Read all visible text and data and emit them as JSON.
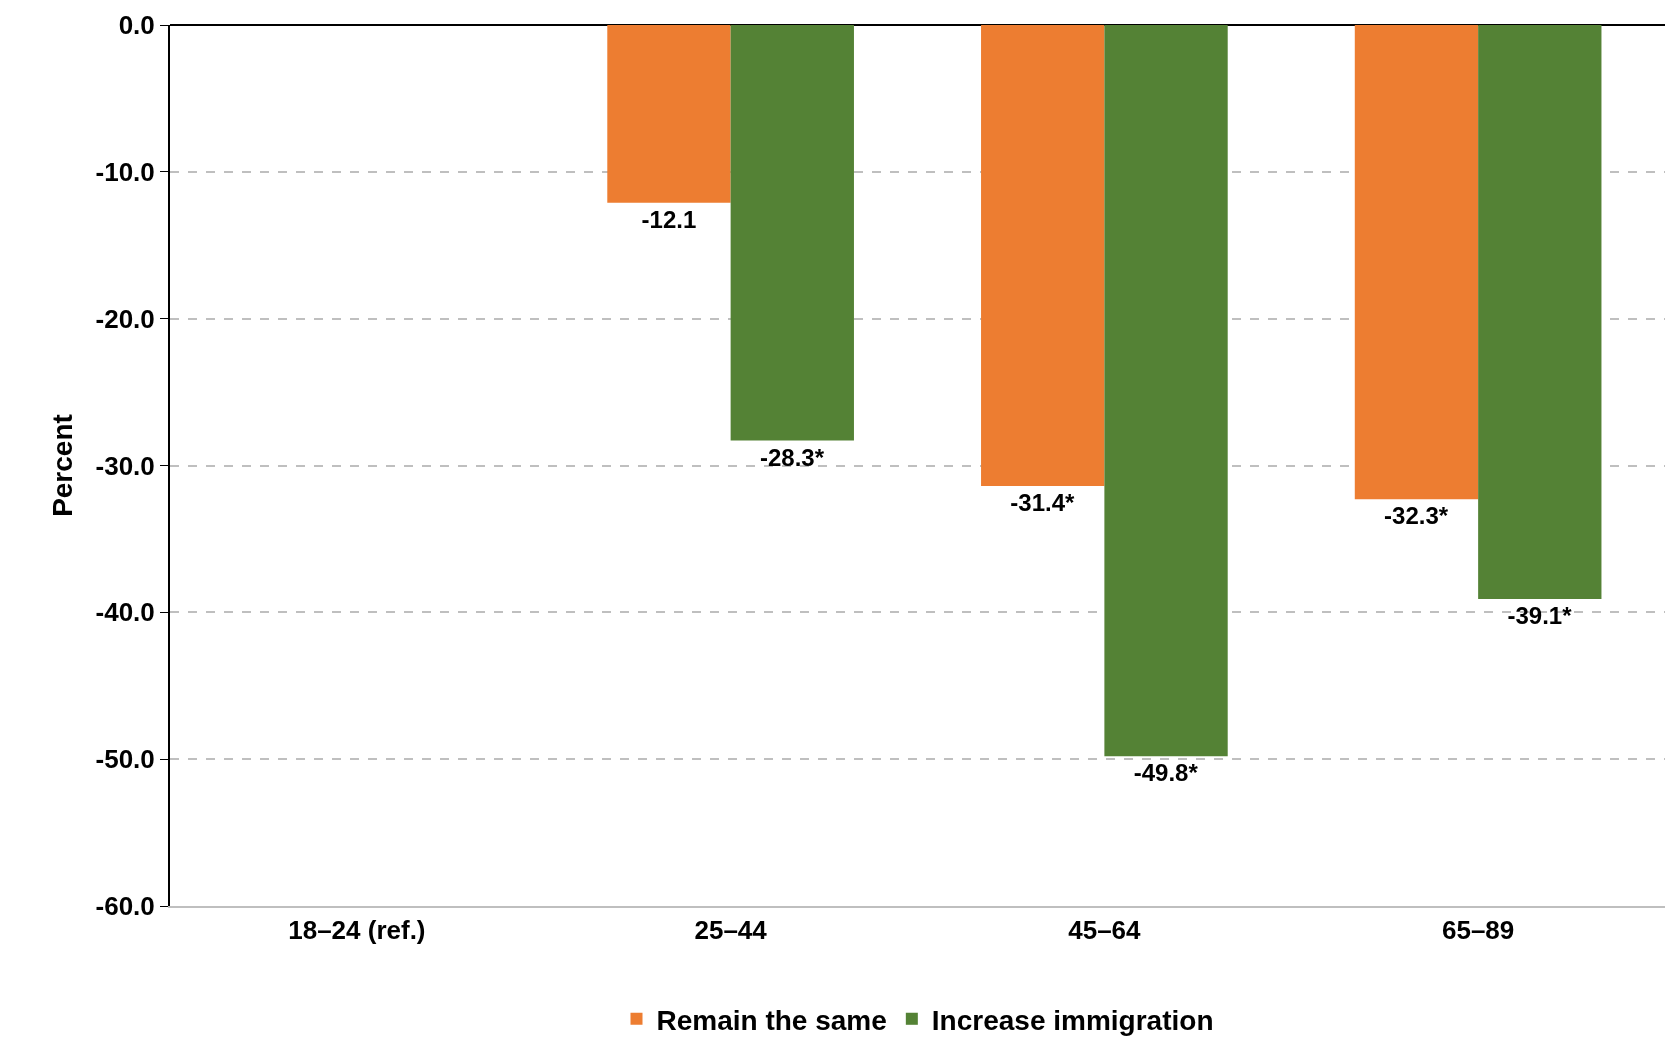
{
  "chart_data": {
    "type": "bar",
    "ylabel": "Percent",
    "categories": [
      "18–24 (ref.)",
      "25–44",
      "45–64",
      "65–89"
    ],
    "series": [
      {
        "name": "Remain the same",
        "color": "#ed7d31",
        "values": [
          null,
          -12.1,
          -31.4,
          -32.3
        ],
        "value_labels": [
          null,
          "-12.1",
          "-31.4*",
          "-32.3*"
        ]
      },
      {
        "name": "Increase immigration",
        "color": "#548235",
        "values": [
          null,
          -28.3,
          -49.8,
          -39.1
        ],
        "value_labels": [
          null,
          "-28.3*",
          "-49.8*",
          "-39.1*"
        ]
      }
    ],
    "ylim": [
      -60,
      0
    ],
    "yticks": [
      {
        "value": -60,
        "label": "-60.0"
      },
      {
        "value": -50,
        "label": "-50.0"
      },
      {
        "value": -40,
        "label": "-40.0"
      },
      {
        "value": -30,
        "label": "-30.0"
      },
      {
        "value": -20,
        "label": "-20.0"
      },
      {
        "value": -10,
        "label": "-10.0"
      },
      {
        "value": 0,
        "label": "0.0"
      }
    ],
    "grid": "y",
    "legend": "bottom"
  }
}
